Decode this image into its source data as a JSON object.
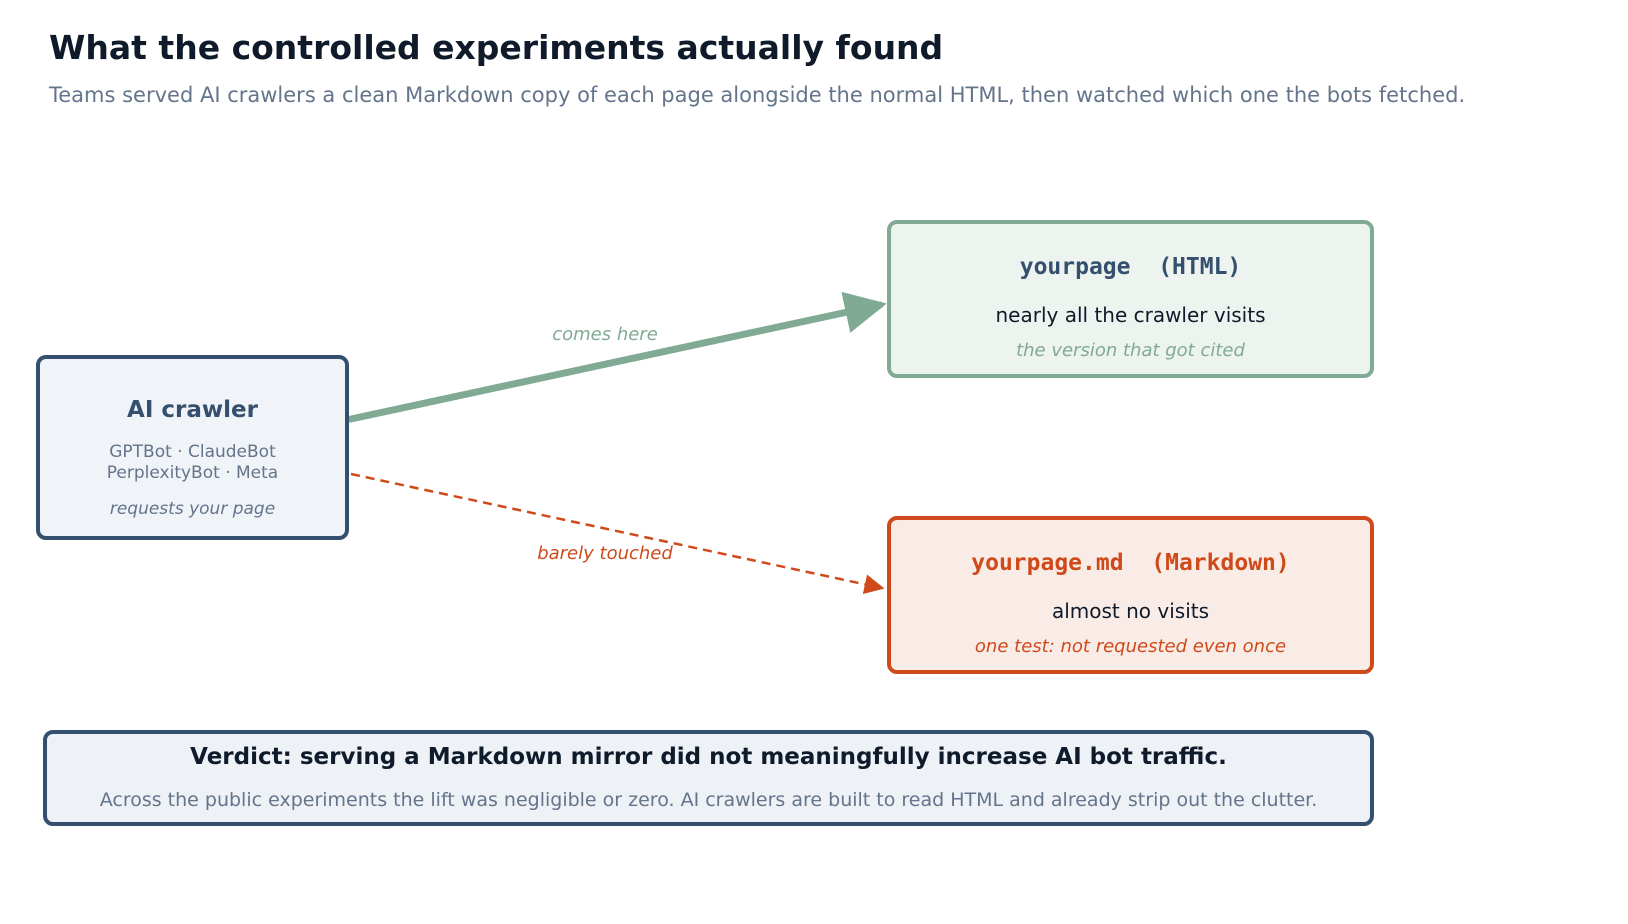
{
  "header": {
    "title": "What the controlled experiments actually found",
    "subtitle": "Teams served AI crawlers a clean Markdown copy of each page alongside the normal HTML, then watched which one the bots fetched."
  },
  "crawler": {
    "title": "AI crawler",
    "bots_line1": "GPTBot · ClaudeBot",
    "bots_line2": "PerplexityBot · Meta",
    "action": "requests your page"
  },
  "html_target": {
    "file": "yourpage  (HTML)",
    "visits": "nearly all the crawler visits",
    "note": "the version that got cited"
  },
  "md_target": {
    "file": "yourpage.md  (Markdown)",
    "visits": "almost no visits",
    "note": "one test: not requested even once"
  },
  "edges": {
    "to_html": "comes here",
    "to_md": "barely touched"
  },
  "verdict": {
    "title": "Verdict: serving a Markdown mirror did not meaningfully increase AI bot traffic.",
    "detail": "Across the public experiments the lift was negligible or zero. AI crawlers are built to read HTML and already strip out the clutter."
  },
  "colors": {
    "navy": "#34506e",
    "green": "#80aa94",
    "orange": "#cf4a1a",
    "text_dark": "#0f1a2b",
    "text_muted": "#64748b"
  }
}
